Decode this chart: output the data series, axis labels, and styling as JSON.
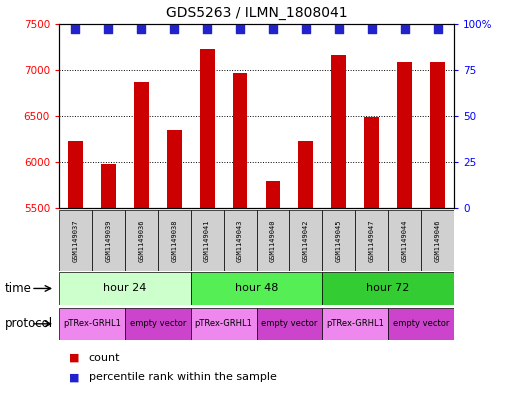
{
  "title": "GDS5263 / ILMN_1808041",
  "samples": [
    "GSM1149037",
    "GSM1149039",
    "GSM1149036",
    "GSM1149038",
    "GSM1149041",
    "GSM1149043",
    "GSM1149040",
    "GSM1149042",
    "GSM1149045",
    "GSM1149047",
    "GSM1149044",
    "GSM1149046"
  ],
  "counts": [
    6230,
    5980,
    6870,
    6350,
    7230,
    6960,
    5800,
    6230,
    7160,
    6490,
    7080,
    7080
  ],
  "percentile_ranks": [
    97,
    97,
    97,
    97,
    97,
    97,
    97,
    97,
    97,
    97,
    97,
    97
  ],
  "ylim_left": [
    5500,
    7500
  ],
  "ylim_right": [
    0,
    100
  ],
  "yticks_left": [
    5500,
    6000,
    6500,
    7000,
    7500
  ],
  "yticks_right": [
    0,
    25,
    50,
    75,
    100
  ],
  "yticklabels_right": [
    "0",
    "25",
    "50",
    "75",
    "100%"
  ],
  "bar_color": "#cc0000",
  "dot_color": "#2222cc",
  "time_groups": [
    {
      "label": "hour 24",
      "start": 0,
      "end": 4,
      "color": "#ccffcc"
    },
    {
      "label": "hour 48",
      "start": 4,
      "end": 8,
      "color": "#55ee55"
    },
    {
      "label": "hour 72",
      "start": 8,
      "end": 12,
      "color": "#33cc33"
    }
  ],
  "protocol_groups": [
    {
      "label": "pTRex-GRHL1",
      "start": 0,
      "end": 2,
      "color": "#ee88ee"
    },
    {
      "label": "empty vector",
      "start": 2,
      "end": 4,
      "color": "#cc44cc"
    },
    {
      "label": "pTRex-GRHL1",
      "start": 4,
      "end": 6,
      "color": "#ee88ee"
    },
    {
      "label": "empty vector",
      "start": 6,
      "end": 8,
      "color": "#cc44cc"
    },
    {
      "label": "pTRex-GRHL1",
      "start": 8,
      "end": 10,
      "color": "#ee88ee"
    },
    {
      "label": "empty vector",
      "start": 10,
      "end": 12,
      "color": "#cc44cc"
    }
  ],
  "sample_box_color": "#d0d0d0",
  "time_label": "time",
  "protocol_label": "protocol",
  "legend_count_label": "count",
  "legend_percentile_label": "percentile rank within the sample",
  "bar_width": 0.45,
  "dot_size": 40
}
